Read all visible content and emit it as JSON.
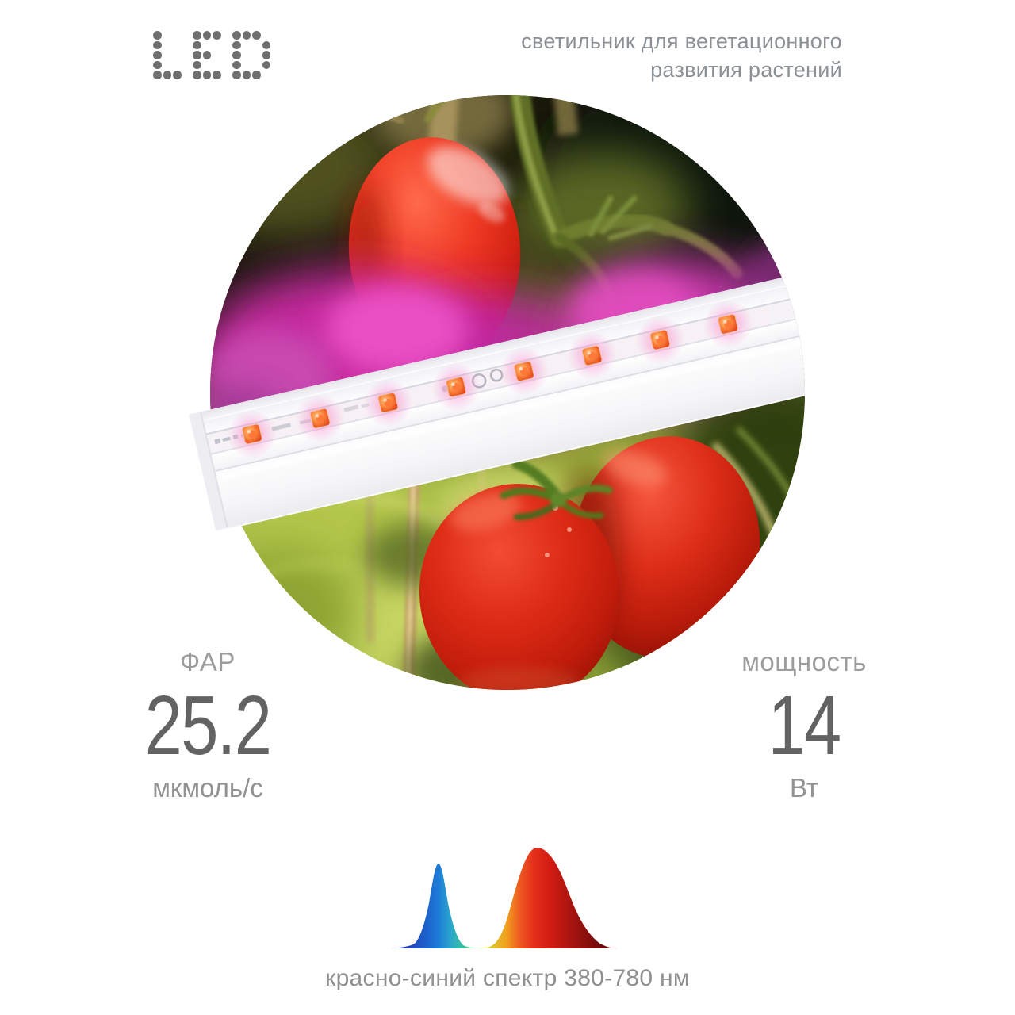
{
  "header": {
    "logo_text": "LED",
    "subtitle_line1": "светильник для вегетационного",
    "subtitle_line2": "развития растений"
  },
  "hero": {
    "led_count": 8
  },
  "stats": {
    "par": {
      "label": "ФАР",
      "value": "25.2",
      "unit": "мкмоль/с"
    },
    "power": {
      "label": "мощность",
      "value": "14",
      "unit": "Вт"
    }
  },
  "spectrum": {
    "caption": "красно-синий спектр 380-780 нм",
    "peaks": [
      {
        "name": "синий",
        "relative_height": 0.84
      },
      {
        "name": "красный",
        "relative_height": 1.0
      }
    ],
    "colors": {
      "blue": "#1d64cc",
      "red": "#e4301b"
    }
  },
  "colors": {
    "magenta_glow": "#cf2aa6",
    "led_chip": "#e8431f",
    "label_gray": "#9d9d9d",
    "value_gray": "#636363",
    "logo_gray": "#6f6f6f"
  }
}
